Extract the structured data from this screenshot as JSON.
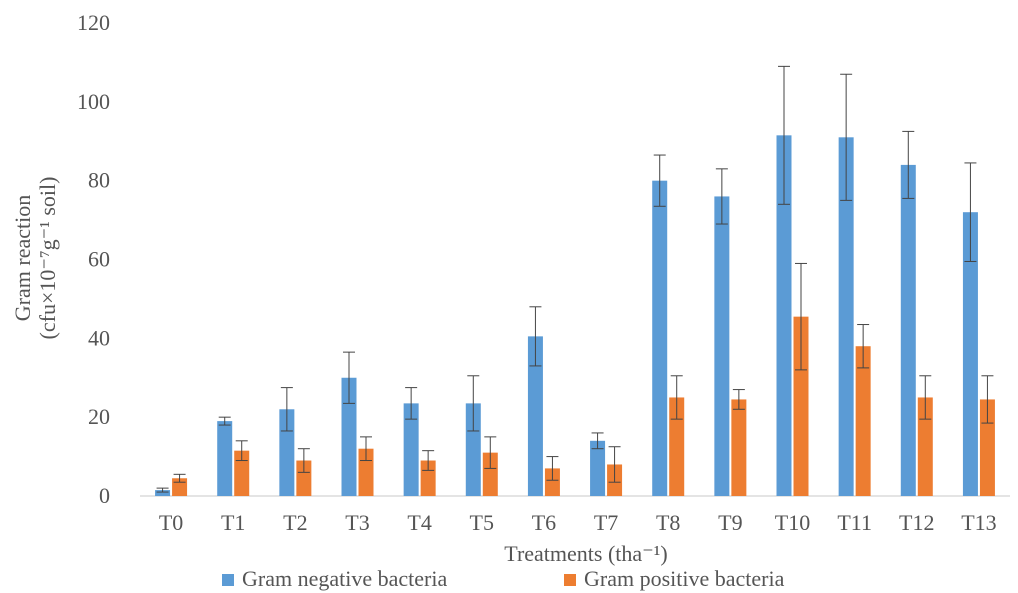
{
  "chart_data": {
    "type": "bar",
    "title": "",
    "xlabel": "Treatments (tha⁻¹)",
    "ylabel_line1": "Gram reaction",
    "ylabel_line2": "(cfu×10⁻⁷g⁻¹ soil)",
    "ylim": [
      0,
      120
    ],
    "yticks": [
      0,
      20,
      40,
      60,
      80,
      100,
      120
    ],
    "grid": false,
    "legend_position": "bottom",
    "categories": [
      "T0",
      "T1",
      "T2",
      "T3",
      "T4",
      "T5",
      "T6",
      "T7",
      "T8",
      "T9",
      "T10",
      "T11",
      "T12",
      "T13"
    ],
    "series": [
      {
        "name": "Gram negative bacteria",
        "color": "#5B9BD5",
        "values": [
          1.5,
          19,
          22,
          30,
          23.5,
          23.5,
          40.5,
          14,
          80,
          76,
          91.5,
          91,
          84,
          72
        ],
        "errors": [
          0.5,
          1,
          5.5,
          6.5,
          4,
          7,
          7.5,
          2,
          6.5,
          7,
          17.5,
          16,
          8.5,
          12.5
        ]
      },
      {
        "name": "Gram positive bacteria",
        "color": "#ED7D31",
        "values": [
          4.5,
          11.5,
          9,
          12,
          9,
          11,
          7,
          8,
          25,
          24.5,
          45.5,
          38,
          25,
          24.5
        ],
        "errors": [
          1,
          2.5,
          3,
          3,
          2.5,
          4,
          3,
          4.5,
          5.5,
          2.5,
          13.5,
          5.5,
          5.5,
          6
        ]
      }
    ]
  }
}
